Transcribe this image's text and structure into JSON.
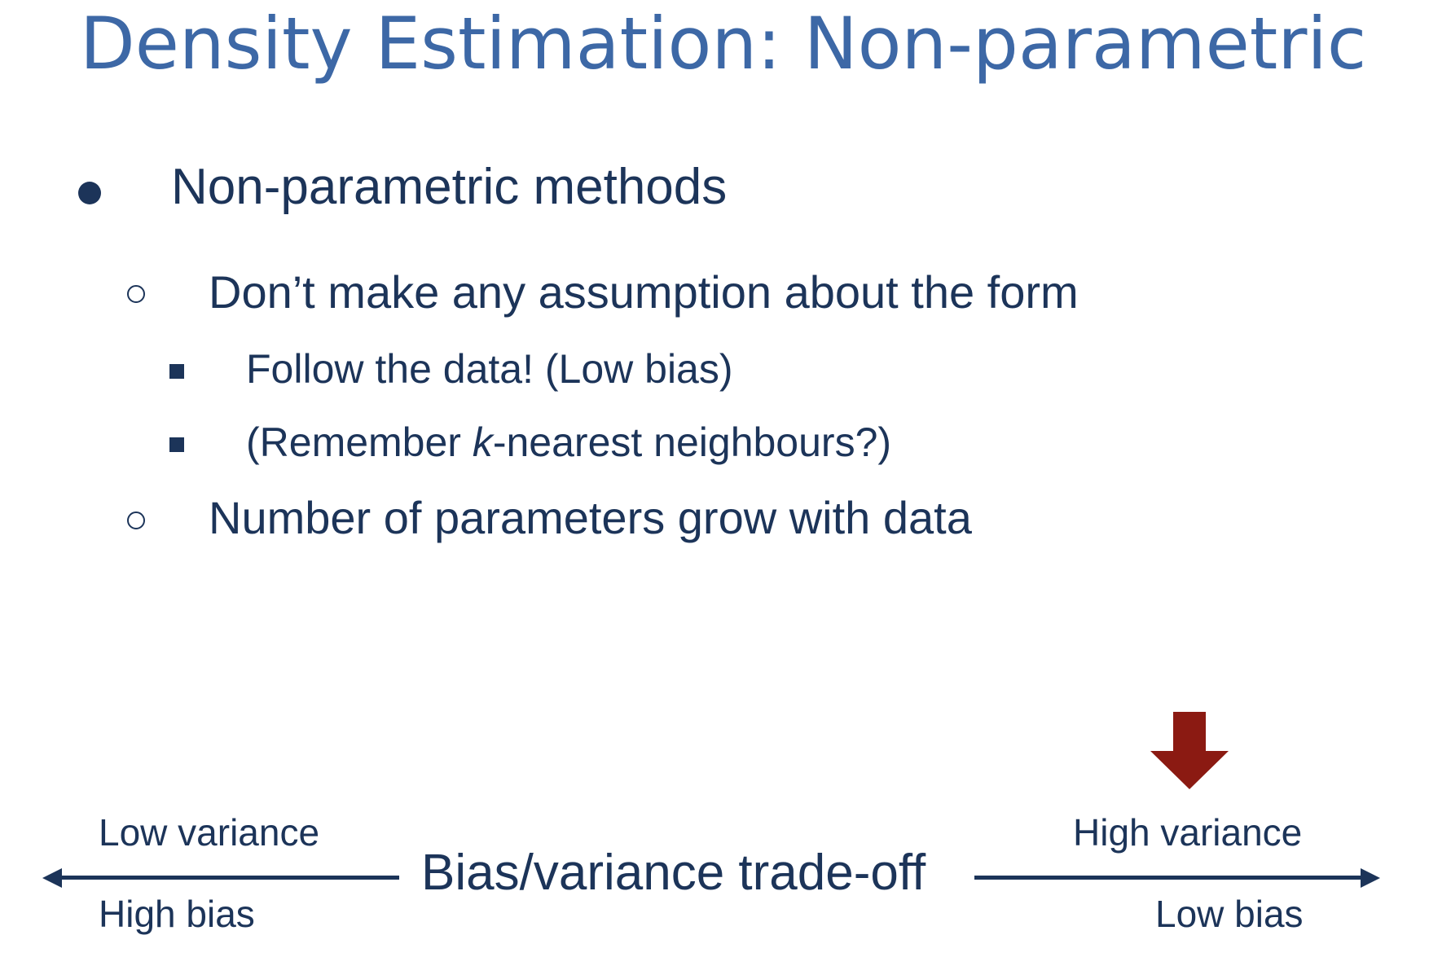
{
  "slide": {
    "title": "Density Estimation: Non-parametric",
    "bullets": {
      "main": "Non-parametric methods",
      "sub1": "Don’t make any assumption about the form",
      "sub1_items": [
        "Follow the data! (Low bias)",
        {
          "before": "(Remember ",
          "italic": "k",
          "after": "-nearest neighbours?)"
        }
      ],
      "sub2": "Number of parameters grow with data"
    },
    "tradeoff": {
      "label": "Bias/variance trade-off",
      "left_top": "Low variance",
      "left_bottom": "High bias",
      "right_top": "High variance",
      "right_bottom": "Low bias",
      "indicator_color": "#8b1a12",
      "line_color": "#1c3459"
    }
  }
}
